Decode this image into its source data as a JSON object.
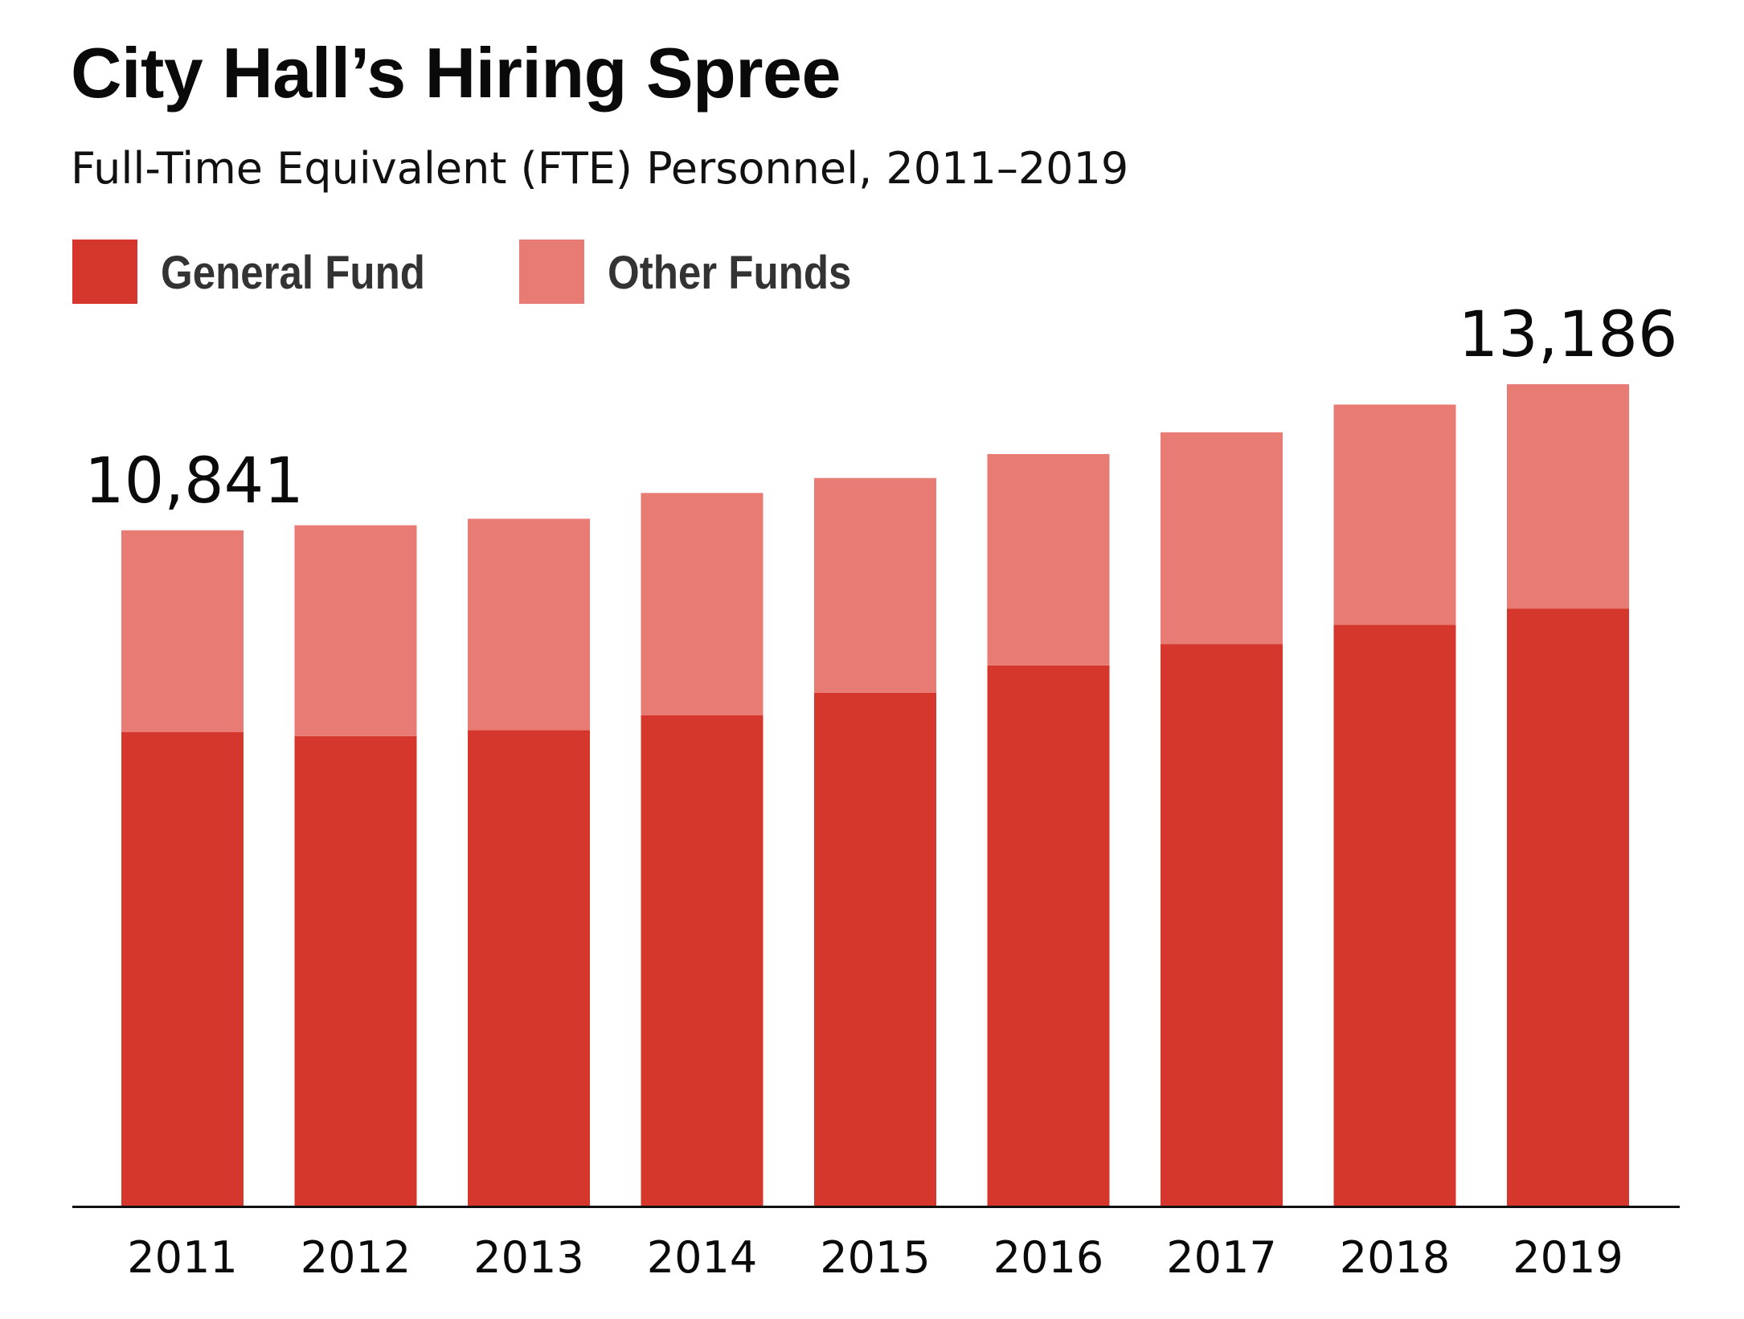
{
  "title": "City Hall’s Hiring Spree",
  "subtitle": "Full-Time Equivalent (FTE) Personnel, 2011–2019",
  "colors": {
    "general_fund": "#d5372c",
    "other_funds": "#e87b74",
    "axis": "#111111",
    "text": "#0a0a0a"
  },
  "legend": [
    {
      "key": "general_fund",
      "label": "General Fund"
    },
    {
      "key": "other_funds",
      "label": "Other Funds"
    }
  ],
  "chart_data": {
    "type": "bar",
    "stacked": true,
    "categories": [
      "2011",
      "2012",
      "2013",
      "2014",
      "2015",
      "2016",
      "2017",
      "2018",
      "2019"
    ],
    "series": [
      {
        "name": "General Fund",
        "color_key": "general_fund",
        "values": [
          7604,
          7538,
          7631,
          7874,
          8235,
          8672,
          9012,
          9325,
          9585
        ]
      },
      {
        "name": "Other Funds",
        "color_key": "other_funds",
        "values": [
          3237,
          3384,
          3395,
          3566,
          3445,
          3393,
          3402,
          3534,
          3601
        ]
      }
    ],
    "totals": [
      10841,
      10922,
      11026,
      11440,
      11680,
      12065,
      12414,
      12859,
      13186
    ],
    "annotations": [
      {
        "category": "2011",
        "text": "10,841"
      },
      {
        "category": "2019",
        "text": "13,186"
      }
    ],
    "xlabel": "",
    "ylabel": "",
    "ylim": [
      0,
      13186
    ],
    "grid": false,
    "legend_position": "top-left"
  }
}
